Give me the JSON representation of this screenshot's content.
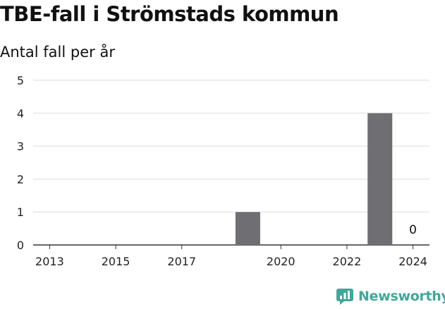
{
  "header": {
    "title": "TBE-fall i Strömstads kommun",
    "subtitle": "Antal fall per år"
  },
  "brand": {
    "name": "Newsworthy",
    "color": "#41a79a"
  },
  "chart_data": {
    "type": "bar",
    "title": "TBE-fall i Strömstads kommun",
    "subtitle": "Antal fall per år",
    "xlabel": "",
    "ylabel": "",
    "categories": [
      "2013",
      "2014",
      "2015",
      "2016",
      "2017",
      "2018",
      "2019",
      "2020",
      "2021",
      "2022",
      "2023",
      "2024"
    ],
    "values": [
      null,
      null,
      null,
      null,
      null,
      null,
      1,
      null,
      null,
      null,
      4,
      0
    ],
    "data_labels": [
      {
        "category": "2024",
        "text": "0"
      }
    ],
    "x_tick_labels": [
      "2013",
      "2015",
      "2017",
      "2020",
      "2022",
      "2024"
    ],
    "y_ticks": [
      0,
      1,
      2,
      3,
      4,
      5
    ],
    "ylim": [
      0,
      5
    ],
    "grid": true,
    "legend": "none",
    "bar_color": "#6f6e73"
  }
}
